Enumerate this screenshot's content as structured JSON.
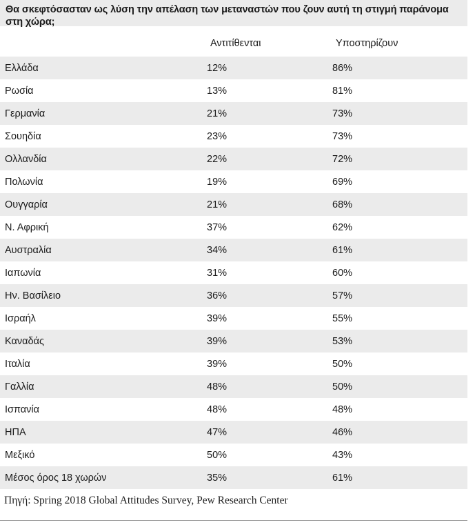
{
  "chart_data": {
    "type": "table",
    "title": "Θα σκεφτόσασταν ως λύση την απέλαση των μεταναστών που ζουν αυτή τη στιγμή παράνομα στη χώρα;",
    "columns": [
      "",
      "Αντιτίθενται",
      "Υποστηρίζουν"
    ],
    "rows": [
      {
        "country": "Ελλάδα",
        "oppose": "12%",
        "support": "86%"
      },
      {
        "country": "Ρωσία",
        "oppose": "13%",
        "support": "81%"
      },
      {
        "country": "Γερμανία",
        "oppose": "21%",
        "support": "73%"
      },
      {
        "country": "Σουηδία",
        "oppose": "23%",
        "support": "73%"
      },
      {
        "country": "Ολλανδία",
        "oppose": "22%",
        "support": "72%"
      },
      {
        "country": "Πολωνία",
        "oppose": "19%",
        "support": "69%"
      },
      {
        "country": "Ουγγαρία",
        "oppose": "21%",
        "support": "68%"
      },
      {
        "country": "Ν. Αφρική",
        "oppose": "37%",
        "support": "62%"
      },
      {
        "country": "Αυστραλία",
        "oppose": "34%",
        "support": "61%"
      },
      {
        "country": "Ιαπωνία",
        "oppose": "31%",
        "support": "60%"
      },
      {
        "country": "Ην. Βασίλειο",
        "oppose": "36%",
        "support": "57%"
      },
      {
        "country": "Ισραήλ",
        "oppose": "39%",
        "support": "55%"
      },
      {
        "country": "Καναδάς",
        "oppose": "39%",
        "support": "53%"
      },
      {
        "country": "Ιταλία",
        "oppose": "39%",
        "support": "50%"
      },
      {
        "country": "Γαλλία",
        "oppose": "48%",
        "support": "50%"
      },
      {
        "country": "Ισπανία",
        "oppose": "48%",
        "support": "48%"
      },
      {
        "country": "ΗΠΑ",
        "oppose": "47%",
        "support": "46%"
      },
      {
        "country": "Μεξικό",
        "oppose": "50%",
        "support": "43%"
      },
      {
        "country": "Μέσος όρος 18 χωρών",
        "oppose": "35%",
        "support": "61%"
      }
    ],
    "source": "Πηγή: Spring 2018 Global Attitudes Survey, Pew Research Center"
  },
  "colors": {
    "shade": "#ebebeb",
    "text": "#1a1a1a"
  }
}
